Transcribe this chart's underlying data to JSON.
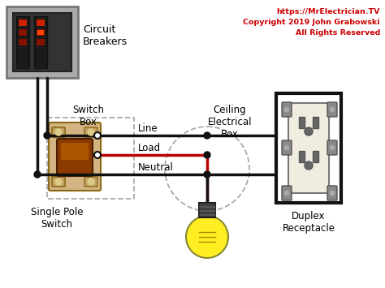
{
  "copyright_text": "https://MrElectrician.TV\nCopyright 2019 John Grabowski\nAll Rights Reserved",
  "copyright_color": "#cc0000",
  "background_color": "#ffffff",
  "labels": {
    "circuit_breakers": "Circuit\nBreakers",
    "switch_box": "Switch\nBox",
    "ceiling_box": "Ceiling\nElectrical\nBox",
    "line": "Line",
    "load": "Load",
    "neutral": "Neutral",
    "single_pole": "Single Pole\nSwitch",
    "duplex": "Duplex\nReceptacle"
  },
  "wire_black": "#111111",
  "wire_red": "#bb0000",
  "fig_width": 4.74,
  "fig_height": 3.55,
  "dpi": 100
}
